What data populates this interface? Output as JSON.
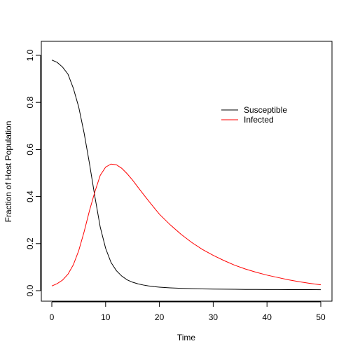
{
  "chart_data": {
    "type": "line",
    "title": "",
    "xlabel": "Time",
    "ylabel": "Fraction of Host Population",
    "xlim": [
      0,
      50
    ],
    "ylim": [
      0,
      1
    ],
    "xticks": [
      0,
      10,
      20,
      30,
      40,
      50
    ],
    "yticks": [
      0.0,
      0.2,
      0.4,
      0.6,
      0.8,
      1.0
    ],
    "ytick_labels": [
      "0.0",
      "0.2",
      "0.4",
      "0.6",
      "0.8",
      "1.0"
    ],
    "grid": false,
    "legend_position": "right",
    "x": [
      0,
      1,
      2,
      3,
      4,
      5,
      6,
      7,
      8,
      9,
      10,
      11,
      12,
      13,
      14,
      15,
      16,
      17,
      18,
      19,
      20,
      22,
      24,
      26,
      28,
      30,
      32,
      34,
      36,
      38,
      40,
      42,
      44,
      46,
      48,
      50
    ],
    "series": [
      {
        "name": "Susceptible",
        "color": "#000000",
        "values": [
          0.98,
          0.97,
          0.95,
          0.92,
          0.86,
          0.78,
          0.67,
          0.54,
          0.4,
          0.27,
          0.18,
          0.12,
          0.085,
          0.062,
          0.046,
          0.036,
          0.029,
          0.024,
          0.02,
          0.017,
          0.015,
          0.012,
          0.01,
          0.0085,
          0.0075,
          0.0068,
          0.0062,
          0.0058,
          0.0054,
          0.0051,
          0.0049,
          0.0047,
          0.0045,
          0.0044,
          0.0043,
          0.0042
        ]
      },
      {
        "name": "Infected",
        "color": "#ff0000",
        "values": [
          0.02,
          0.03,
          0.045,
          0.07,
          0.11,
          0.17,
          0.25,
          0.34,
          0.42,
          0.49,
          0.525,
          0.538,
          0.535,
          0.52,
          0.497,
          0.47,
          0.44,
          0.41,
          0.381,
          0.353,
          0.325,
          0.28,
          0.24,
          0.205,
          0.175,
          0.15,
          0.128,
          0.108,
          0.092,
          0.078,
          0.066,
          0.056,
          0.046,
          0.038,
          0.031,
          0.025
        ]
      }
    ]
  }
}
